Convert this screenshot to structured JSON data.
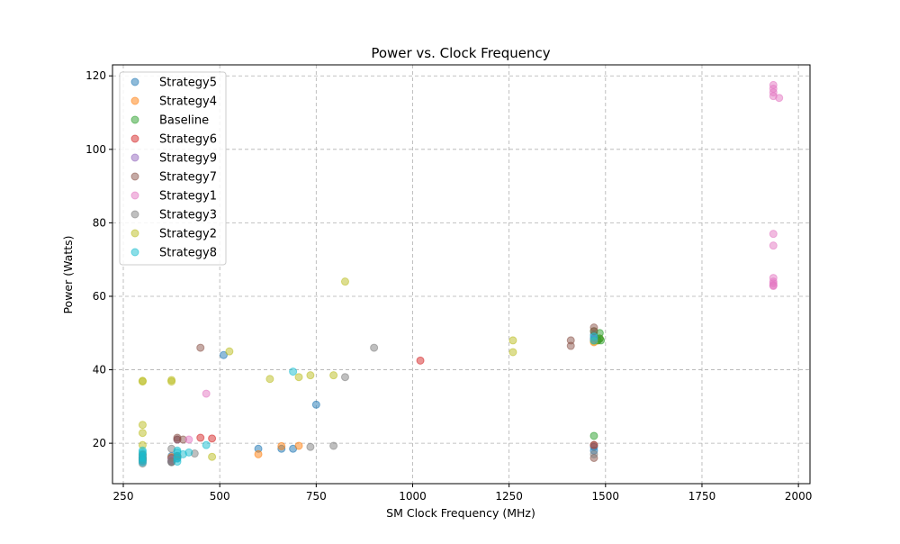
{
  "chart_data": {
    "type": "scatter",
    "title": "Power vs. Clock Frequency",
    "xlabel": "SM Clock Frequency (MHz)",
    "ylabel": "Power (Watts)",
    "xlim": [
      222,
      2030
    ],
    "ylim": [
      9,
      123
    ],
    "xticks": [
      250,
      500,
      750,
      1000,
      1250,
      1500,
      1750,
      2000
    ],
    "yticks": [
      20,
      40,
      60,
      80,
      100,
      120
    ],
    "grid": true,
    "legend_position": "top-left",
    "series": [
      {
        "name": "Strategy5",
        "color": "#1f77b4",
        "points": [
          [
            300,
            15.5
          ],
          [
            300,
            16.2
          ],
          [
            375,
            15.0
          ],
          [
            375,
            16.5
          ],
          [
            390,
            16.0
          ],
          [
            510,
            44.0
          ],
          [
            600,
            18.5
          ],
          [
            660,
            18.5
          ],
          [
            690,
            18.5
          ],
          [
            750,
            30.5
          ],
          [
            1470,
            18.0
          ],
          [
            1470,
            19.0
          ],
          [
            1470,
            48.5
          ],
          [
            1470,
            49.5
          ]
        ]
      },
      {
        "name": "Strategy4",
        "color": "#ff7f0e",
        "points": [
          [
            300,
            15.8
          ],
          [
            300,
            17.0
          ],
          [
            375,
            16.2
          ],
          [
            390,
            16.5
          ],
          [
            600,
            17.0
          ],
          [
            660,
            19.2
          ],
          [
            705,
            19.3
          ],
          [
            1470,
            47.5
          ],
          [
            1480,
            48.0
          ],
          [
            1485,
            48.5
          ]
        ]
      },
      {
        "name": "Baseline",
        "color": "#2ca02c",
        "points": [
          [
            1470,
            22.0
          ],
          [
            1470,
            50.5
          ],
          [
            1480,
            48.0
          ],
          [
            1485,
            48.5
          ],
          [
            1488,
            48.0
          ],
          [
            1485,
            50.0
          ]
        ]
      },
      {
        "name": "Strategy6",
        "color": "#d62728",
        "points": [
          [
            300,
            16.0
          ],
          [
            300,
            16.8
          ],
          [
            375,
            16.0
          ],
          [
            390,
            16.5
          ],
          [
            450,
            21.5
          ],
          [
            480,
            21.3
          ],
          [
            1020,
            42.5
          ],
          [
            1470,
            19.5
          ],
          [
            1470,
            48.0
          ]
        ]
      },
      {
        "name": "Strategy9",
        "color": "#9467bd",
        "points": [
          [
            300,
            15.0
          ],
          [
            375,
            15.5
          ],
          [
            390,
            21.0
          ],
          [
            1470,
            48.5
          ]
        ]
      },
      {
        "name": "Strategy7",
        "color": "#8c564b",
        "points": [
          [
            300,
            15.5
          ],
          [
            375,
            15.0
          ],
          [
            390,
            21.5
          ],
          [
            390,
            21.0
          ],
          [
            405,
            21.0
          ],
          [
            450,
            46.0
          ],
          [
            1410,
            48.0
          ],
          [
            1410,
            46.5
          ],
          [
            1470,
            51.5
          ],
          [
            1470,
            50.5
          ],
          [
            1470,
            19.5
          ],
          [
            1470,
            16.0
          ]
        ]
      },
      {
        "name": "Strategy1",
        "color": "#e377c2",
        "points": [
          [
            420,
            21.0
          ],
          [
            465,
            33.5
          ],
          [
            1935,
            117.5
          ],
          [
            1935,
            116.5
          ],
          [
            1935,
            115.5
          ],
          [
            1935,
            114.5
          ],
          [
            1950,
            114.0
          ],
          [
            1935,
            77.0
          ],
          [
            1935,
            73.8
          ],
          [
            1935,
            65.0
          ],
          [
            1935,
            64.0
          ],
          [
            1935,
            63.5
          ],
          [
            1935,
            63.0
          ],
          [
            1935,
            62.8
          ]
        ]
      },
      {
        "name": "Strategy3",
        "color": "#7f7f7f",
        "points": [
          [
            300,
            14.5
          ],
          [
            300,
            15.2
          ],
          [
            375,
            14.8
          ],
          [
            375,
            16.0
          ],
          [
            375,
            18.5
          ],
          [
            435,
            17.2
          ],
          [
            735,
            19.0
          ],
          [
            795,
            19.3
          ],
          [
            825,
            38.0
          ],
          [
            900,
            46.0
          ],
          [
            1470,
            17.0
          ]
        ]
      },
      {
        "name": "Strategy2",
        "color": "#bcbd22",
        "points": [
          [
            300,
            37.0
          ],
          [
            300,
            36.8
          ],
          [
            375,
            37.2
          ],
          [
            375,
            36.8
          ],
          [
            300,
            25.0
          ],
          [
            300,
            22.8
          ],
          [
            300,
            19.5
          ],
          [
            480,
            16.3
          ],
          [
            525,
            45.0
          ],
          [
            630,
            37.5
          ],
          [
            705,
            38.0
          ],
          [
            735,
            38.5
          ],
          [
            795,
            38.5
          ],
          [
            825,
            64.0
          ],
          [
            1260,
            48.0
          ],
          [
            1260,
            44.8
          ],
          [
            1470,
            47.8
          ]
        ]
      },
      {
        "name": "Strategy8",
        "color": "#17becf",
        "points": [
          [
            300,
            14.8
          ],
          [
            300,
            15.4
          ],
          [
            300,
            16.0
          ],
          [
            300,
            16.5
          ],
          [
            300,
            17.0
          ],
          [
            300,
            17.5
          ],
          [
            300,
            18.0
          ],
          [
            390,
            15.0
          ],
          [
            390,
            15.8
          ],
          [
            390,
            16.5
          ],
          [
            390,
            17.5
          ],
          [
            390,
            18.0
          ],
          [
            405,
            17.0
          ],
          [
            420,
            17.5
          ],
          [
            465,
            19.5
          ],
          [
            690,
            39.5
          ],
          [
            1470,
            48.0
          ],
          [
            1470,
            49.0
          ]
        ]
      }
    ]
  }
}
